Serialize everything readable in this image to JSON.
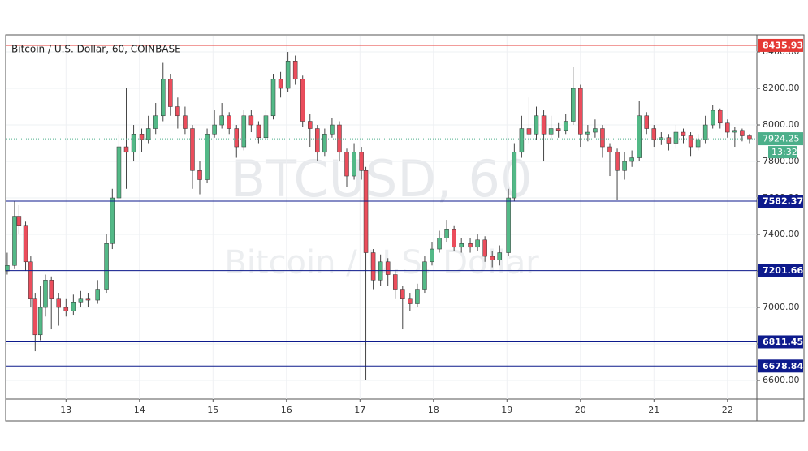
{
  "chart_data": {
    "type": "candlestick",
    "title": "Bitcoin / U.S. Dollar, 60, COINBASE",
    "watermark": "BTCUSD, 60",
    "watermark_subtitle": "Bitcoin / U.S. Dollar",
    "countdown": "13:32",
    "up_color": "#53b987",
    "down_color": "#eb4d5c",
    "xlim": [
      12.19,
      22.4
    ],
    "xticks": [
      13,
      14,
      15,
      16,
      17,
      18,
      19,
      20,
      21,
      22
    ],
    "ylim": [
      6498,
      8489
    ],
    "yticks": [
      {
        "value": 6600,
        "label": "6600.00"
      },
      {
        "value": 6800,
        "label": "6800.00"
      },
      {
        "value": 7000,
        "label": "7000.00"
      },
      {
        "value": 7200,
        "label": "7200.00"
      },
      {
        "value": 7400,
        "label": "7400.00"
      },
      {
        "value": 7600,
        "label": "7600.00"
      },
      {
        "value": 7800,
        "label": "7800.00"
      },
      {
        "value": 8000,
        "label": "8000.00"
      },
      {
        "value": 8200,
        "label": "8200.00"
      },
      {
        "value": 8400,
        "label": "8400.00"
      }
    ],
    "levels": [
      {
        "value": 8435.93,
        "color": "#e53935"
      },
      {
        "value": 7582.37,
        "color": "#0d1a8c"
      },
      {
        "value": 7201.66,
        "color": "#0d1a8c"
      },
      {
        "value": 6811.45,
        "color": "#0d1a8c"
      },
      {
        "value": 6678.84,
        "color": "#0d1a8c"
      }
    ],
    "last_price": {
      "value": 7924.25,
      "color": "#4caf8a"
    },
    "x": [
      12.2,
      12.3,
      12.36,
      12.45,
      12.52,
      12.58,
      12.65,
      12.72,
      12.8,
      12.9,
      13.0,
      13.1,
      13.2,
      13.3,
      13.43,
      13.55,
      13.63,
      13.72,
      13.82,
      13.92,
      14.03,
      14.12,
      14.22,
      14.32,
      14.42,
      14.52,
      14.62,
      14.72,
      14.82,
      14.92,
      15.02,
      15.12,
      15.22,
      15.32,
      15.42,
      15.52,
      15.62,
      15.72,
      15.82,
      15.92,
      16.02,
      16.12,
      16.22,
      16.32,
      16.42,
      16.52,
      16.62,
      16.72,
      16.82,
      16.92,
      17.02,
      17.08,
      17.18,
      17.28,
      17.38,
      17.48,
      17.58,
      17.68,
      17.78,
      17.88,
      17.98,
      18.08,
      18.18,
      18.28,
      18.38,
      18.5,
      18.6,
      18.7,
      18.8,
      18.9,
      19.02,
      19.1,
      19.2,
      19.3,
      19.4,
      19.5,
      19.6,
      19.7,
      19.8,
      19.9,
      20.0,
      20.1,
      20.2,
      20.3,
      20.4,
      20.5,
      20.6,
      20.7,
      20.8,
      20.9,
      21.0,
      21.1,
      21.2,
      21.3,
      21.4,
      21.5,
      21.6,
      21.7,
      21.8,
      21.9,
      22.0,
      22.1,
      22.2,
      22.3
    ],
    "open": [
      7200,
      7230,
      7500,
      7450,
      7250,
      7050,
      6850,
      7000,
      7150,
      7050,
      7000,
      6980,
      7030,
      7050,
      7040,
      7100,
      7350,
      7600,
      7880,
      7850,
      7950,
      7920,
      7980,
      8050,
      8250,
      8100,
      8050,
      7980,
      7750,
      7700,
      7950,
      8000,
      8050,
      7980,
      7880,
      8050,
      8000,
      7930,
      8050,
      8250,
      8200,
      8350,
      8250,
      8020,
      7980,
      7850,
      7950,
      8000,
      7850,
      7720,
      7850,
      7750,
      7300,
      7150,
      7250,
      7180,
      7100,
      7050,
      7020,
      7100,
      7250,
      7320,
      7380,
      7430,
      7330,
      7350,
      7330,
      7370,
      7280,
      7260,
      7300,
      7600,
      7850,
      7980,
      7950,
      8050,
      7950,
      7980,
      7970,
      8020,
      8200,
      7950,
      7960,
      7980,
      7880,
      7850,
      7750,
      7800,
      7820,
      8050,
      7980,
      7920,
      7930,
      7900,
      7960,
      7940,
      7880,
      7920,
      8000,
      8080,
      8010,
      7960,
      7970,
      7940
    ],
    "high": [
      7300,
      7580,
      7560,
      7470,
      7280,
      7080,
      7120,
      7180,
      7170,
      7080,
      7050,
      7070,
      7090,
      7080,
      7150,
      7400,
      7650,
      7950,
      8200,
      8000,
      7980,
      8050,
      8120,
      8340,
      8280,
      8150,
      8100,
      8000,
      7800,
      7980,
      8080,
      8120,
      8070,
      8000,
      8080,
      8080,
      8020,
      8080,
      8280,
      8290,
      8400,
      8380,
      8270,
      8060,
      8000,
      7980,
      8040,
      8020,
      7870,
      7900,
      7880,
      7770,
      7320,
      7290,
      7270,
      7200,
      7120,
      7080,
      7130,
      7280,
      7360,
      7420,
      7480,
      7450,
      7380,
      7380,
      7400,
      7390,
      7310,
      7340,
      7650,
      7900,
      8050,
      8150,
      8100,
      8080,
      8050,
      8010,
      8060,
      8320,
      8220,
      8000,
      8030,
      8000,
      7900,
      7870,
      7850,
      7860,
      8130,
      8070,
      8000,
      7960,
      7950,
      8000,
      7980,
      7960,
      7950,
      8050,
      8110,
      8090,
      8030,
      7990,
      7980,
      7950
    ],
    "low": [
      7180,
      7210,
      7400,
      7200,
      7000,
      6760,
      6820,
      6950,
      6880,
      6900,
      6950,
      6960,
      7000,
      7000,
      7020,
      7080,
      7320,
      7580,
      7650,
      7800,
      7850,
      7900,
      7950,
      8020,
      8050,
      7980,
      7950,
      7650,
      7620,
      7680,
      7930,
      7980,
      7950,
      7820,
      7860,
      7960,
      7900,
      7920,
      8030,
      8150,
      8180,
      8220,
      7990,
      7880,
      7800,
      7830,
      7930,
      7800,
      7660,
      7700,
      7700,
      6600,
      7100,
      7120,
      7120,
      7050,
      6880,
      6980,
      7000,
      7080,
      7230,
      7300,
      7360,
      7310,
      7300,
      7300,
      7310,
      7250,
      7220,
      7230,
      7280,
      7580,
      7820,
      7900,
      7920,
      7800,
      7920,
      7930,
      7950,
      8000,
      7880,
      7910,
      7930,
      7820,
      7720,
      7590,
      7700,
      7770,
      7800,
      7950,
      7880,
      7890,
      7860,
      7870,
      7900,
      7830,
      7860,
      7900,
      7980,
      7980,
      7930,
      7880,
      7910,
      7900
    ],
    "close": [
      7230,
      7500,
      7450,
      7250,
      7050,
      6850,
      7000,
      7150,
      7050,
      7000,
      6980,
      7030,
      7050,
      7040,
      7100,
      7350,
      7600,
      7880,
      7850,
      7950,
      7920,
      7980,
      8050,
      8250,
      8100,
      8050,
      7980,
      7750,
      7700,
      7950,
      8000,
      8050,
      7980,
      7880,
      8050,
      8000,
      7930,
      8050,
      8250,
      8200,
      8350,
      8250,
      8020,
      7980,
      7850,
      7950,
      8000,
      7850,
      7720,
      7850,
      7750,
      7300,
      7150,
      7250,
      7180,
      7100,
      7050,
      7020,
      7100,
      7250,
      7320,
      7380,
      7430,
      7330,
      7350,
      7330,
      7370,
      7280,
      7260,
      7300,
      7600,
      7850,
      7980,
      7950,
      8050,
      7950,
      7980,
      7970,
      8020,
      8200,
      7950,
      7960,
      7980,
      7880,
      7850,
      7750,
      7800,
      7820,
      8050,
      7980,
      7920,
      7930,
      7900,
      7960,
      7940,
      7880,
      7920,
      8000,
      8080,
      8010,
      7960,
      7970,
      7940,
      7924.25
    ]
  }
}
